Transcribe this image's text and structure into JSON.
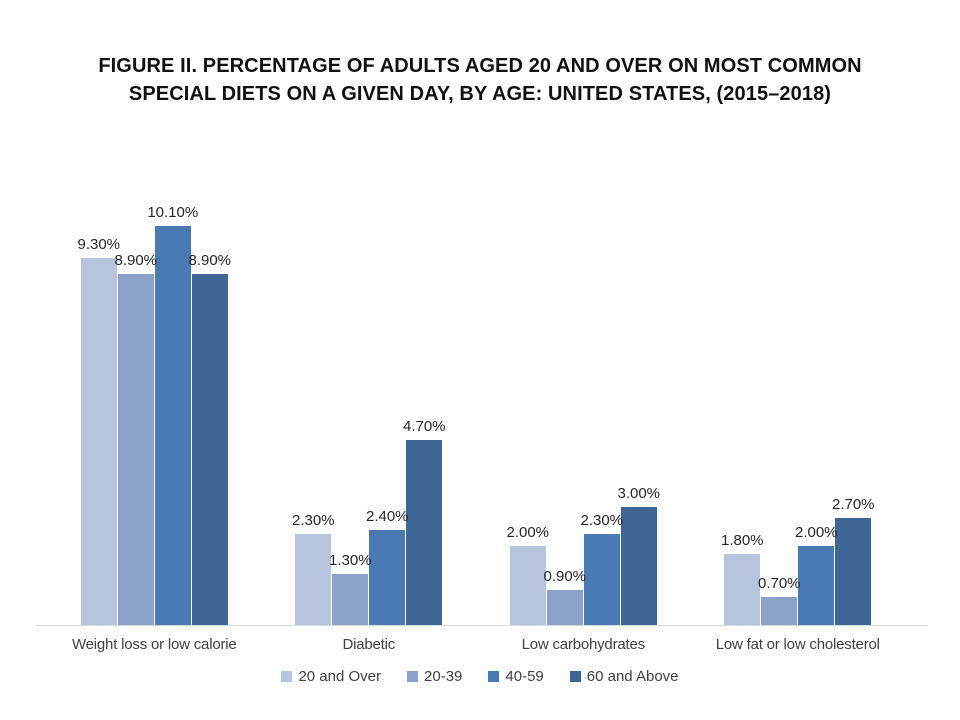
{
  "page": {
    "background": "#ffffff",
    "axis_line_color": "#d9d9d9",
    "title_color": "#111111",
    "label_color": "#262626"
  },
  "chart_data": {
    "type": "bar",
    "title": "FIGURE II. PERCENTAGE OF ADULTS AGED 20 AND OVER ON MOST COMMON SPECIAL DIETS ON A GIVEN DAY, BY AGE: UNITED STATES, (2015–2018)",
    "title_lines": [
      "FIGURE II. PERCENTAGE OF ADULTS AGED 20 AND OVER ON MOST COMMON",
      "SPECIAL DIETS ON A GIVEN DAY, BY AGE: UNITED STATES, (2015–2018)"
    ],
    "categories": [
      "Weight loss or low calorie",
      "Diabetic",
      "Low carbohydrates",
      "Low fat or low cholesterol"
    ],
    "series": [
      {
        "name": "20 and Over",
        "color": "#b7c4dd",
        "values": [
          9.3,
          2.3,
          2.0,
          1.8
        ],
        "data_labels": [
          "9.30%",
          "2.30%",
          "2.00%",
          "1.80%"
        ]
      },
      {
        "name": "20-39",
        "color": "#8ba1c9",
        "values": [
          8.9,
          1.3,
          0.9,
          0.7
        ],
        "data_labels": [
          "8.90%",
          "1.30%",
          "0.90%",
          "0.70%"
        ]
      },
      {
        "name": "40-59",
        "color": "#4a7ab4",
        "values": [
          10.1,
          2.4,
          2.3,
          2.0
        ],
        "data_labels": [
          "10.10%",
          "2.40%",
          "2.30%",
          "2.00%"
        ]
      },
      {
        "name": "60 and Above",
        "color": "#3d6695",
        "values": [
          8.9,
          4.7,
          3.0,
          2.7
        ],
        "data_labels": [
          "8.90%",
          "4.70%",
          "3.00%",
          "2.70%"
        ]
      }
    ],
    "xlabel": "",
    "ylabel": "",
    "ylim": [
      0,
      11.2
    ],
    "y_axis_visible": false,
    "x_axis_line": true,
    "gridlines": false,
    "data_labels_visible": true,
    "legend_position": "bottom"
  }
}
